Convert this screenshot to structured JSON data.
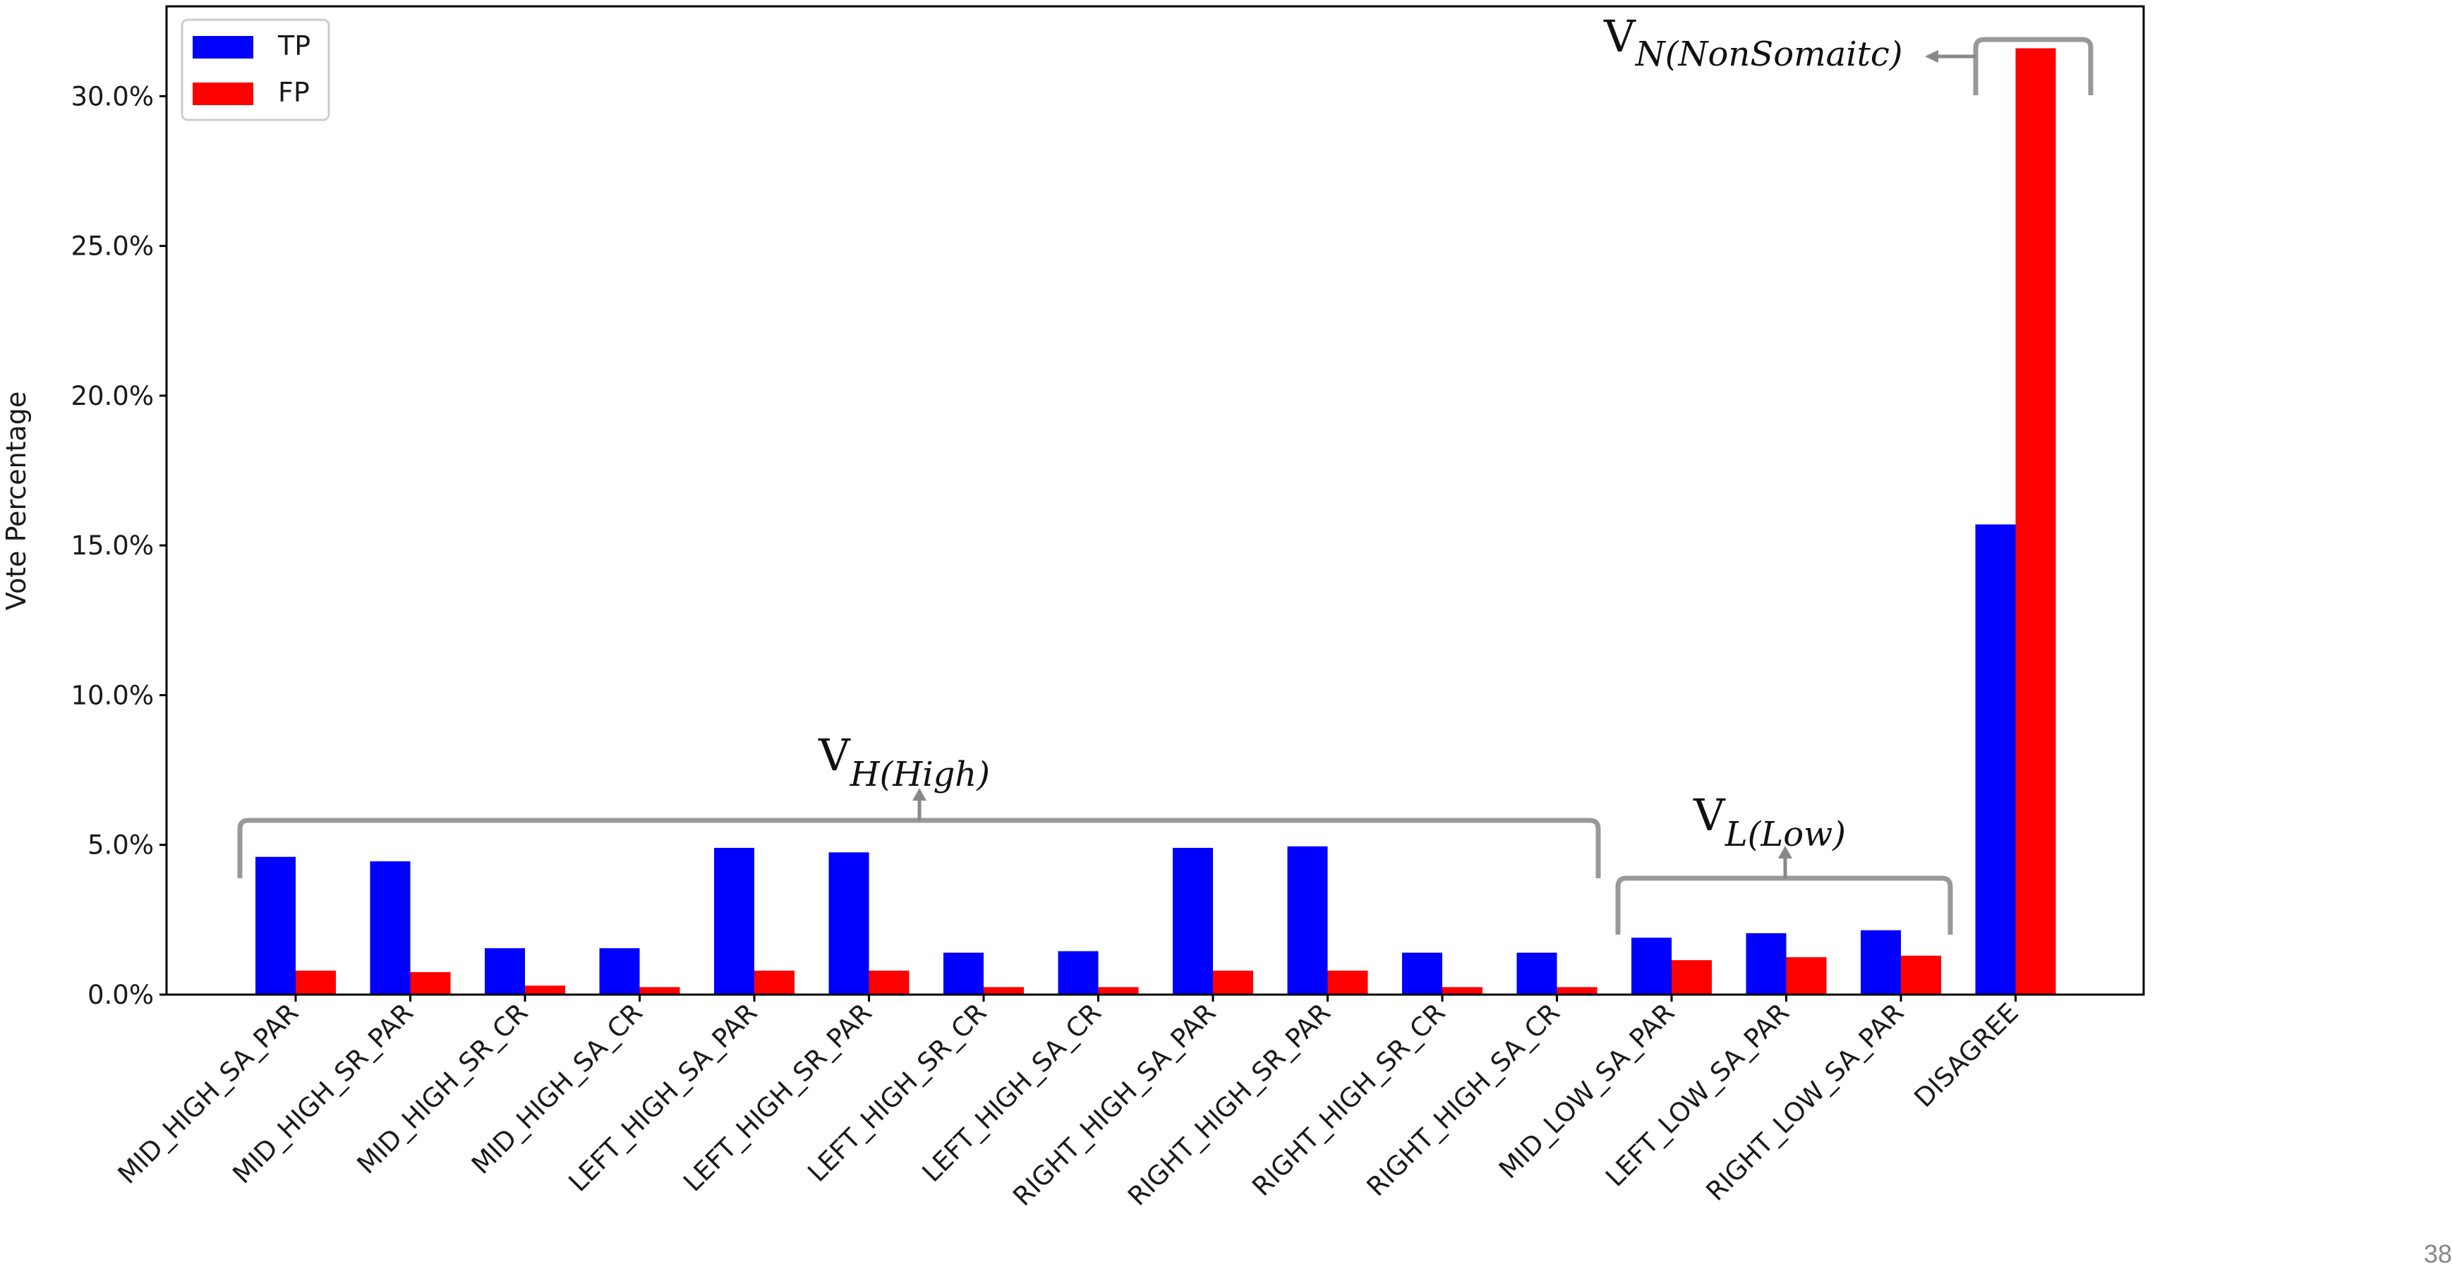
{
  "chart_data": {
    "type": "bar",
    "title": "",
    "xlabel": "",
    "ylabel": "Vote Percentage",
    "ylim": [
      0,
      33
    ],
    "yticks": [
      0,
      5,
      10,
      15,
      20,
      25,
      30
    ],
    "ytick_labels": [
      "0.0%",
      "5.0%",
      "10.0%",
      "15.0%",
      "20.0%",
      "25.0%",
      "30.0%"
    ],
    "categories": [
      "MID_HIGH_SA_PAR",
      "MID_HIGH_SR_PAR",
      "MID_HIGH_SR_CR",
      "MID_HIGH_SA_CR",
      "LEFT_HIGH_SA_PAR",
      "LEFT_HIGH_SR_PAR",
      "LEFT_HIGH_SR_CR",
      "LEFT_HIGH_SA_CR",
      "RIGHT_HIGH_SA_PAR",
      "RIGHT_HIGH_SR_PAR",
      "RIGHT_HIGH_SR_CR",
      "RIGHT_HIGH_SA_CR",
      "MID_LOW_SA_PAR",
      "LEFT_LOW_SA_PAR",
      "RIGHT_LOW_SA_PAR",
      "DISAGREE"
    ],
    "series": [
      {
        "name": "TP",
        "color": "#0000ff",
        "values": [
          4.6,
          4.45,
          1.55,
          1.55,
          4.9,
          4.75,
          1.4,
          1.45,
          4.9,
          4.95,
          1.4,
          1.4,
          1.9,
          2.05,
          2.15,
          15.7
        ]
      },
      {
        "name": "FP",
        "color": "#ff0000",
        "values": [
          0.8,
          0.75,
          0.3,
          0.25,
          0.8,
          0.8,
          0.25,
          0.25,
          0.8,
          0.8,
          0.25,
          0.25,
          1.15,
          1.25,
          1.3,
          31.6
        ]
      }
    ],
    "legend_position": "top-left",
    "grid": false,
    "annotations": [
      {
        "main": "V",
        "sub": "H(High)"
      },
      {
        "main": "V",
        "sub": "L(Low)"
      },
      {
        "main": "V",
        "sub": "N(NonSomaitc)"
      }
    ]
  },
  "slide_number": "38"
}
